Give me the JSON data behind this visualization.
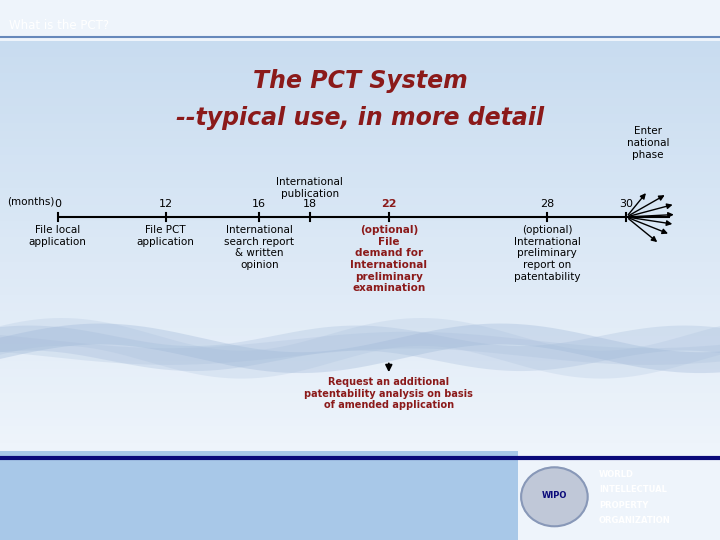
{
  "title_line1": "The PCT System",
  "title_line2": "--typical use, in more detail",
  "title_color": "#8B1A1A",
  "header_text": "What is the PCT?",
  "header_bg": "#0A0A7A",
  "header_text_color": "#FFFFFF",
  "main_bg_top": "#EEF4FB",
  "main_bg_bottom": "#C8DCF0",
  "footer_bg": "#0A0A7A",
  "footer_light_bg": "#A8C8E8",
  "wipo_box_bg": "#FFFFFF",
  "wipo_text_color": "#0A0A7A",
  "timeline_months": [
    0,
    12,
    16,
    18,
    22,
    28,
    30
  ],
  "tick_labels": [
    "0",
    "12",
    "16",
    "18",
    "22",
    "28",
    "30"
  ],
  "months_label": "(months)",
  "title_red": "#8B1A1A",
  "request_text": "Request an additional\npatentability analysis on basis\nof amended application",
  "request_color": "#8B1A1A",
  "wave_color": "#A0B8D8"
}
